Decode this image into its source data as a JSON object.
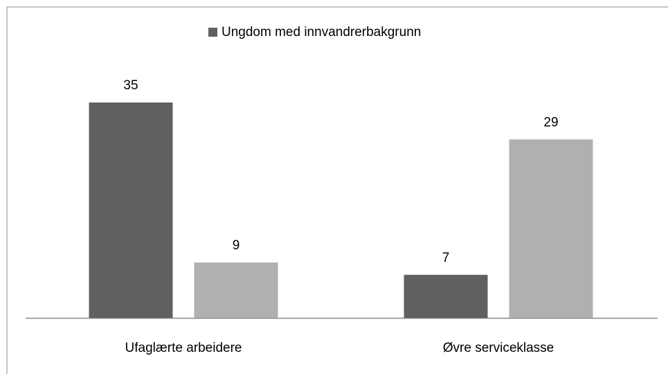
{
  "chart_data": {
    "type": "bar",
    "categories": [
      "Ufaglærte arbeidere",
      "Øvre serviceklasse"
    ],
    "series": [
      {
        "name": "Ungdom med innvandrerbakgrunn",
        "color": "#606060",
        "values": [
          35,
          7
        ]
      },
      {
        "color": "#b0b0b0",
        "values": [
          9,
          29
        ]
      }
    ],
    "legend": "top"
  }
}
